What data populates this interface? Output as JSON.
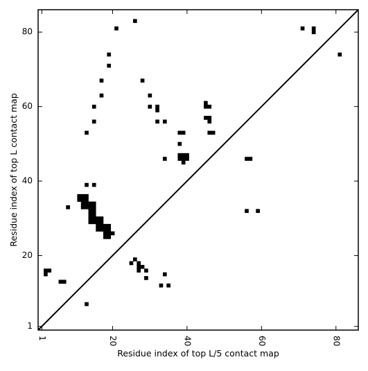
{
  "chart_data": {
    "type": "scatter",
    "marker": "square",
    "xlabel": "Residue index of top L/5 contact map",
    "ylabel": "Residue index of top L contact map",
    "xlim": [
      0,
      86
    ],
    "ylim": [
      0,
      86
    ],
    "xticks": [
      1,
      20,
      40,
      60,
      80
    ],
    "yticks": [
      1,
      20,
      40,
      60,
      80
    ],
    "diagonal": true,
    "colors": {
      "marker": "#000000",
      "axis": "#000000",
      "background": "#ffffff"
    },
    "points": [
      [
        21,
        81
      ],
      [
        26,
        83
      ],
      [
        74,
        80
      ],
      [
        74,
        81
      ],
      [
        71,
        81
      ],
      [
        81,
        74
      ],
      [
        19,
        74
      ],
      [
        19,
        71
      ],
      [
        17,
        67
      ],
      [
        28,
        67
      ],
      [
        17,
        63
      ],
      [
        30,
        63
      ],
      [
        15,
        60
      ],
      [
        30,
        60
      ],
      [
        32,
        60
      ],
      [
        32,
        59
      ],
      [
        45,
        61
      ],
      [
        45,
        60
      ],
      [
        46,
        60
      ],
      [
        15,
        56
      ],
      [
        32,
        56
      ],
      [
        34,
        56
      ],
      [
        45,
        57
      ],
      [
        46,
        57
      ],
      [
        46,
        56
      ],
      [
        13,
        53
      ],
      [
        38,
        53
      ],
      [
        39,
        53
      ],
      [
        46,
        53
      ],
      [
        47,
        53
      ],
      [
        38,
        50
      ],
      [
        34,
        46
      ],
      [
        38,
        47
      ],
      [
        39,
        47
      ],
      [
        40,
        47
      ],
      [
        38,
        46
      ],
      [
        39,
        46
      ],
      [
        40,
        46
      ],
      [
        39,
        45
      ],
      [
        56,
        46
      ],
      [
        57,
        46
      ],
      [
        13,
        39
      ],
      [
        15,
        39
      ],
      [
        11,
        36
      ],
      [
        12,
        36
      ],
      [
        13,
        36
      ],
      [
        11,
        35
      ],
      [
        12,
        35
      ],
      [
        13,
        35
      ],
      [
        12,
        34
      ],
      [
        13,
        34
      ],
      [
        14,
        34
      ],
      [
        15,
        34
      ],
      [
        12,
        33
      ],
      [
        13,
        33
      ],
      [
        14,
        33
      ],
      [
        15,
        33
      ],
      [
        14,
        32
      ],
      [
        15,
        32
      ],
      [
        14,
        31
      ],
      [
        15,
        31
      ],
      [
        14,
        30
      ],
      [
        15,
        30
      ],
      [
        16,
        30
      ],
      [
        17,
        30
      ],
      [
        14,
        29
      ],
      [
        15,
        29
      ],
      [
        16,
        29
      ],
      [
        17,
        29
      ],
      [
        16,
        28
      ],
      [
        17,
        28
      ],
      [
        18,
        28
      ],
      [
        19,
        28
      ],
      [
        16,
        27
      ],
      [
        17,
        27
      ],
      [
        18,
        27
      ],
      [
        19,
        27
      ],
      [
        18,
        26
      ],
      [
        19,
        26
      ],
      [
        20,
        26
      ],
      [
        18,
        25
      ],
      [
        19,
        25
      ],
      [
        8,
        33
      ],
      [
        56,
        32
      ],
      [
        59,
        32
      ],
      [
        26,
        19
      ],
      [
        25,
        18
      ],
      [
        27,
        18
      ],
      [
        27,
        17
      ],
      [
        28,
        17
      ],
      [
        27,
        16
      ],
      [
        29,
        16
      ],
      [
        29,
        14
      ],
      [
        2,
        16
      ],
      [
        3,
        16
      ],
      [
        2,
        15
      ],
      [
        6,
        13
      ],
      [
        7,
        13
      ],
      [
        34,
        15
      ],
      [
        33,
        12
      ],
      [
        35,
        12
      ],
      [
        13,
        7
      ]
    ]
  }
}
